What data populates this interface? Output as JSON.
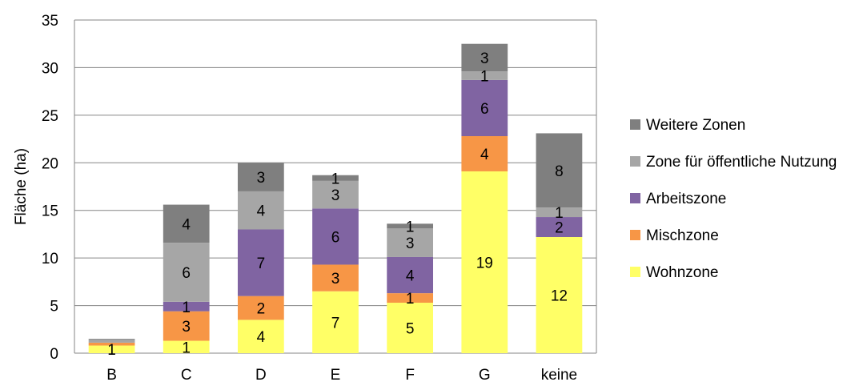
{
  "chart_data": {
    "type": "bar",
    "stacked": true,
    "categories": [
      "B",
      "C",
      "D",
      "E",
      "F",
      "G",
      "keine"
    ],
    "ylabel": "Fläche (ha)",
    "xlabel": "",
    "ylim": [
      0,
      35
    ],
    "yticks": [
      0,
      5,
      10,
      15,
      20,
      25,
      30,
      35
    ],
    "grid": true,
    "legend_position": "right",
    "series": [
      {
        "name": "Wohnzone",
        "color": "#FFFF66",
        "values": [
          0.8,
          1.3,
          3.5,
          6.5,
          5.3,
          19.1,
          12.2
        ],
        "labels": [
          "1",
          "1",
          "4",
          "7",
          "5",
          "19",
          "12"
        ]
      },
      {
        "name": "Mischzone",
        "color": "#F79646",
        "values": [
          0.3,
          3.1,
          2.5,
          2.8,
          1.0,
          3.7,
          0.0
        ],
        "labels": [
          "",
          "3",
          "2",
          "3",
          "1",
          "4",
          ""
        ]
      },
      {
        "name": "Arbeitszone",
        "color": "#8064A2",
        "values": [
          0.0,
          1.0,
          7.0,
          5.9,
          3.8,
          5.9,
          2.1
        ],
        "labels": [
          "",
          "1",
          "7",
          "6",
          "4",
          "6",
          "2"
        ]
      },
      {
        "name": "Zone für öffentliche Nutzung",
        "color": "#A6A6A6",
        "values": [
          0.3,
          6.2,
          4.0,
          2.9,
          3.0,
          0.9,
          1.0
        ],
        "labels": [
          "",
          "6",
          "4",
          "3",
          "3",
          "1",
          "1"
        ]
      },
      {
        "name": "Weitere Zonen",
        "color": "#7F7F7F",
        "values": [
          0.1,
          4.0,
          3.0,
          0.6,
          0.5,
          2.9,
          7.8
        ],
        "labels": [
          "",
          "4",
          "3",
          "1",
          "1",
          "3",
          "8"
        ]
      }
    ]
  }
}
